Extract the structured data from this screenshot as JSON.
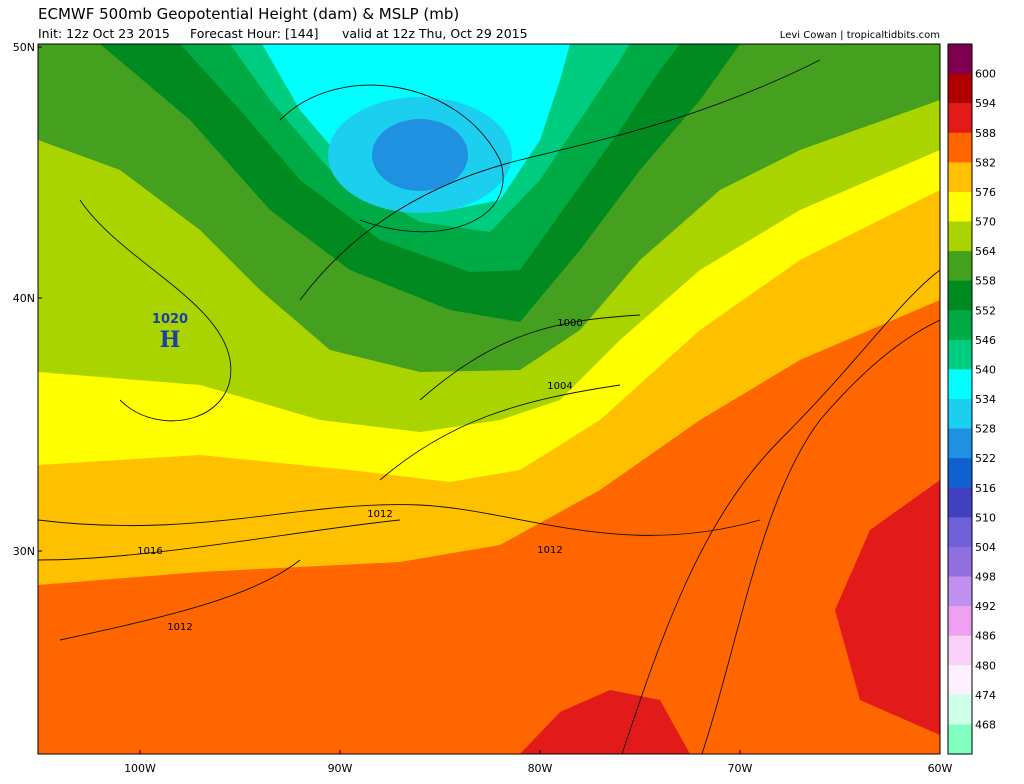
{
  "header": {
    "title": "ECMWF 500mb Geopotential Height (dam) & MSLP (mb)",
    "init": "Init: 12z Oct 23 2015",
    "forecast": "Forecast Hour: [144]",
    "valid": "valid at 12z Thu, Oct 29 2015",
    "credit": "Levi Cowan | tropicaltidbits.com"
  },
  "map": {
    "lat_labels": [
      "50N",
      "40N",
      "30N"
    ],
    "lon_labels": [
      "100W",
      "90W",
      "80W",
      "70W",
      "60W"
    ],
    "pressure_labels": [
      1000,
      1004,
      1012,
      1016,
      1012,
      1012
    ],
    "high": {
      "value": 1020,
      "letter": "H"
    }
  },
  "colorbar": {
    "labels": [
      600,
      594,
      588,
      582,
      576,
      570,
      564,
      558,
      552,
      546,
      540,
      534,
      528,
      522,
      516,
      510,
      504,
      498,
      492,
      486,
      480,
      474,
      468
    ],
    "colors": [
      "#800050",
      "#b00000",
      "#e21a1a",
      "#ff6600",
      "#ffc000",
      "#ffff00",
      "#aad400",
      "#44a01e",
      "#008a20",
      "#00aa44",
      "#00cc80",
      "#00ffff",
      "#1ccfef",
      "#2090e0",
      "#1060d0",
      "#4040c0",
      "#7060d8",
      "#9070e0",
      "#c090f0",
      "#f0a0f0",
      "#f8d0f8",
      "#fff0ff",
      "#d0ffe8",
      "#80ffc0"
    ]
  }
}
